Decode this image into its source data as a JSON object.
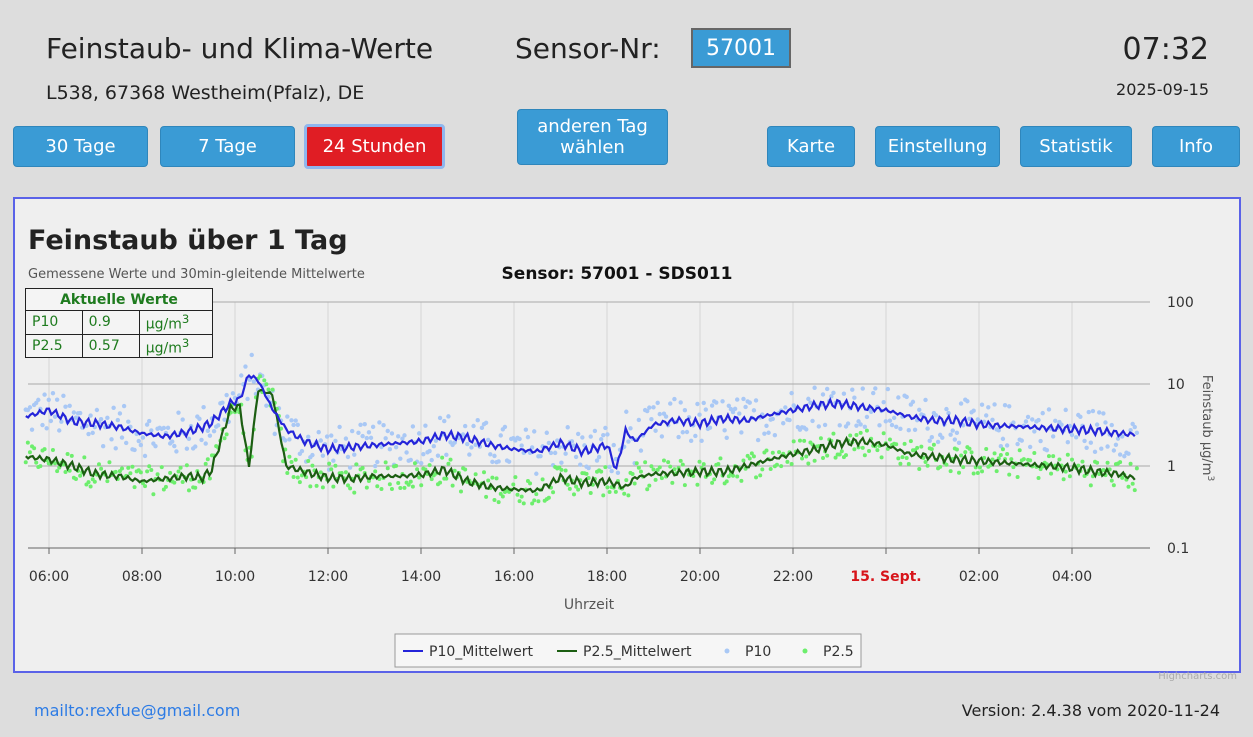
{
  "header": {
    "title": "Feinstaub- und Klima-Werte",
    "sensor_label": "Sensor-Nr:",
    "sensor_value": "57001",
    "time": "07:32",
    "date": "2025-09-15",
    "address": "L538, 67368 Westheim(Pfalz), DE"
  },
  "nav": {
    "btn_30": "30 Tage",
    "btn_7": "7 Tage",
    "btn_24": "24 Stunden",
    "btn_other_line1": "anderen Tag",
    "btn_other_line2": "wählen",
    "btn_map": "Karte",
    "btn_settings": "Einstellung",
    "btn_stats": "Statistik",
    "btn_info": "Info"
  },
  "current": {
    "title": "Aktuelle Werte",
    "rows": [
      {
        "name": "P10",
        "value": "0.9",
        "unit": "µg/m",
        "sup": "3"
      },
      {
        "name": "P2.5",
        "value": "0.57",
        "unit": "µg/m",
        "sup": "3"
      }
    ]
  },
  "chart_data": {
    "type": "line",
    "title": "Feinstaub über 1 Tag",
    "subtitle": "Gemessene Werte und 30min-gleitende Mittelwerte",
    "sensor_title": "Sensor: 57001 - SDS011",
    "xlabel": "Uhrzeit",
    "ylabel": "Feinstaub µg/m",
    "ylabel_sup": "3",
    "y_scale": "log",
    "ylim": [
      0.1,
      100
    ],
    "y_ticks": [
      "100",
      "10",
      "1",
      "0.1"
    ],
    "x_ticks": [
      "06:00",
      "08:00",
      "10:00",
      "12:00",
      "14:00",
      "16:00",
      "18:00",
      "20:00",
      "22:00",
      "15. Sept.",
      "02:00",
      "04:00"
    ],
    "x_tick_highlight": "15. Sept.",
    "grid": true,
    "legend_position": "bottom-center",
    "credits": "Highcharts.com",
    "colors": {
      "p10_mean": "#2424d9",
      "p25_mean": "#1c5e12",
      "p10": "#a9c8f5",
      "p25": "#6dee6d",
      "highlight": "#d7141a"
    },
    "series": [
      {
        "name": "P10_Mittelwert",
        "hours": [
          5.5,
          6,
          6.5,
          7,
          7.5,
          8,
          8.5,
          9,
          9.3,
          9.5,
          9.9,
          10.1,
          10.3,
          10.5,
          10.8,
          11.1,
          11.5,
          12,
          12.5,
          13,
          13.5,
          14,
          14.5,
          15,
          15.5,
          16,
          16.5,
          17,
          17.5,
          18,
          18.2,
          18.4,
          18.6,
          19,
          19.5,
          20,
          20.5,
          21,
          21.5,
          22,
          22.5,
          23,
          23.5,
          24,
          24.5,
          25,
          25.5,
          26,
          26.5,
          27,
          27.5,
          28,
          28.5,
          29,
          29.4
        ],
        "values": [
          4,
          4.8,
          3.5,
          3.3,
          3,
          2.5,
          2.3,
          2.6,
          3,
          3.4,
          5.8,
          6.5,
          13,
          11,
          5,
          2.8,
          2,
          1.6,
          1.7,
          1.8,
          1.9,
          2,
          2.4,
          2.2,
          1.8,
          1.6,
          1.5,
          1.9,
          1.5,
          1.8,
          0.9,
          2.7,
          2,
          3.2,
          3.6,
          3.3,
          3.8,
          3.6,
          4.2,
          4.8,
          5.5,
          5.8,
          5.2,
          4.8,
          4,
          3.6,
          3.6,
          3.2,
          3.1,
          3,
          2.9,
          2.8,
          2.7,
          2.5,
          2.4
        ]
      },
      {
        "name": "P2.5_Mittelwert",
        "hours": [
          5.5,
          6,
          6.5,
          7,
          7.5,
          8,
          8.5,
          9,
          9.3,
          9.5,
          9.9,
          10.1,
          10.3,
          10.5,
          10.8,
          11.1,
          11.5,
          12,
          12.5,
          13,
          13.5,
          14,
          14.5,
          15,
          15.5,
          16,
          16.5,
          17,
          17.5,
          18,
          18.2,
          18.4,
          18.6,
          19,
          19.5,
          20,
          20.5,
          21,
          21.5,
          22,
          22.5,
          23,
          23.5,
          24,
          24.5,
          25,
          25.5,
          26,
          26.5,
          27,
          27.5,
          28,
          28.5,
          29,
          29.4
        ],
        "values": [
          1.3,
          1.2,
          1,
          0.8,
          0.75,
          0.65,
          0.7,
          0.75,
          0.72,
          0.9,
          5,
          5.3,
          1,
          8.5,
          7.5,
          1,
          0.85,
          0.72,
          0.7,
          0.75,
          0.75,
          0.78,
          0.9,
          0.65,
          0.55,
          0.52,
          0.5,
          0.72,
          0.62,
          0.65,
          0.6,
          0.55,
          0.72,
          0.8,
          0.82,
          0.85,
          0.85,
          1,
          1.2,
          1.4,
          1.6,
          1.9,
          2,
          1.8,
          1.4,
          1.3,
          1.2,
          1.15,
          1.1,
          1.05,
          1,
          0.95,
          0.85,
          0.8,
          0.7
        ]
      },
      {
        "name": "P10",
        "points": "scatter of individual P10 measurements around P10_Mittelwert"
      },
      {
        "name": "P2.5",
        "points": "scatter of individual P2.5 measurements around P2.5_Mittelwert"
      }
    ]
  },
  "footer": {
    "mail": "mailto:rexfue@gmail.com",
    "version": "Version: 2.4.38 vom 2020-11-24"
  }
}
